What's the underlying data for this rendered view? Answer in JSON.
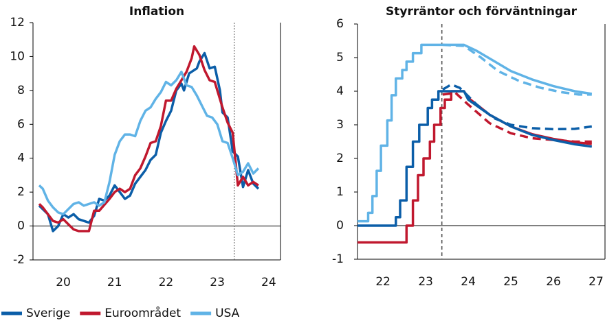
{
  "chart_data": [
    {
      "type": "line",
      "title": "Inflation",
      "xlim": [
        19.41,
        24.23
      ],
      "xticks": [
        20,
        21,
        22,
        23,
        24
      ],
      "ylim": [
        -2,
        12
      ],
      "yticks": [
        -2,
        0,
        2,
        4,
        6,
        8,
        10,
        12
      ],
      "vline": 23.33,
      "grid": false,
      "series": [
        {
          "name": "Sverige",
          "color": "#0b5ea8",
          "x": [
            19.53,
            19.7,
            19.8,
            19.9,
            20.0,
            20.1,
            20.2,
            20.3,
            20.5,
            20.6,
            20.7,
            20.8,
            20.9,
            21.0,
            21.1,
            21.2,
            21.3,
            21.4,
            21.5,
            21.6,
            21.7,
            21.8,
            21.9,
            22.0,
            22.1,
            22.2,
            22.3,
            22.35,
            22.45,
            22.6,
            22.65,
            22.75,
            22.85,
            22.95,
            23.05,
            23.1,
            23.2,
            23.3,
            23.4,
            23.5,
            23.6,
            23.7,
            23.8
          ],
          "values": [
            1.2,
            0.7,
            -0.3,
            0.0,
            0.7,
            0.5,
            0.7,
            0.4,
            0.2,
            0.6,
            1.6,
            1.5,
            1.8,
            2.4,
            2.0,
            1.6,
            1.8,
            2.5,
            2.9,
            3.3,
            3.9,
            4.2,
            5.5,
            6.2,
            6.8,
            8.0,
            8.4,
            8.0,
            9.0,
            9.3,
            9.7,
            10.2,
            9.3,
            9.4,
            8.0,
            6.7,
            6.4,
            4.4,
            4.1,
            2.3,
            3.3,
            2.5,
            2.2
          ]
        },
        {
          "name": "Euroområdet",
          "color": "#c0182e",
          "x": [
            19.53,
            19.6,
            19.8,
            19.9,
            20.0,
            20.1,
            20.2,
            20.3,
            20.5,
            20.6,
            20.7,
            20.9,
            21.0,
            21.1,
            21.2,
            21.3,
            21.4,
            21.5,
            21.6,
            21.7,
            21.8,
            21.9,
            22.0,
            22.1,
            22.2,
            22.3,
            22.4,
            22.5,
            22.55,
            22.65,
            22.75,
            22.85,
            22.95,
            23.0,
            23.1,
            23.2,
            23.3,
            23.4,
            23.5,
            23.6,
            23.7,
            23.8
          ],
          "values": [
            1.3,
            1.1,
            0.3,
            0.2,
            0.4,
            0.1,
            -0.2,
            -0.3,
            -0.3,
            0.9,
            0.9,
            1.6,
            2.0,
            2.2,
            2.0,
            2.2,
            3.0,
            3.4,
            4.1,
            4.9,
            5.0,
            5.9,
            7.4,
            7.4,
            8.1,
            8.6,
            9.1,
            9.9,
            10.6,
            10.1,
            9.2,
            8.6,
            8.5,
            8.0,
            7.0,
            6.1,
            5.5,
            2.4,
            2.9,
            2.4,
            2.6,
            2.4
          ]
        },
        {
          "name": "USA",
          "color": "#60b3e6",
          "x": [
            19.53,
            19.6,
            19.7,
            19.8,
            19.9,
            20.0,
            20.1,
            20.2,
            20.3,
            20.4,
            20.5,
            20.6,
            20.7,
            20.8,
            20.9,
            21.0,
            21.1,
            21.2,
            21.3,
            21.4,
            21.5,
            21.6,
            21.7,
            21.8,
            21.9,
            22.0,
            22.1,
            22.2,
            22.3,
            22.4,
            22.5,
            22.6,
            22.7,
            22.8,
            22.9,
            23.0,
            23.1,
            23.2,
            23.3,
            23.4,
            23.5,
            23.6,
            23.7,
            23.8
          ],
          "values": [
            2.4,
            2.2,
            1.5,
            1.1,
            0.8,
            0.7,
            1.0,
            1.3,
            1.4,
            1.2,
            1.3,
            1.4,
            1.2,
            1.4,
            2.6,
            4.2,
            5.0,
            5.4,
            5.4,
            5.3,
            6.2,
            6.8,
            7.0,
            7.5,
            7.9,
            8.5,
            8.3,
            8.6,
            9.1,
            8.3,
            8.2,
            7.7,
            7.1,
            6.5,
            6.4,
            6.0,
            5.0,
            4.9,
            4.0,
            3.0,
            3.2,
            3.7,
            3.1,
            3.4
          ]
        }
      ]
    },
    {
      "type": "line",
      "title": "Styrräntor och förväntningar",
      "xlim": [
        21.4,
        27.21
      ],
      "xticks": [
        22,
        23,
        24,
        25,
        26,
        27
      ],
      "ylim": [
        -1,
        6
      ],
      "yticks": [
        -1,
        0,
        1,
        2,
        3,
        4,
        5,
        6
      ],
      "vline": 23.38,
      "grid": false,
      "series": [
        {
          "color": "#60b3e6",
          "dashed": false,
          "x": [
            21.4,
            21.65,
            21.65,
            21.75,
            21.75,
            21.85,
            21.85,
            21.95,
            21.95,
            22.1,
            22.1,
            22.2,
            22.2,
            22.3,
            22.3,
            22.45,
            22.45,
            22.55,
            22.55,
            22.7,
            22.7,
            22.9,
            22.9,
            23.9,
            24.2,
            24.6,
            25.0,
            25.5,
            26.0,
            26.5,
            26.9
          ],
          "values": [
            0.13,
            0.13,
            0.38,
            0.38,
            0.88,
            0.88,
            1.63,
            1.63,
            2.38,
            2.38,
            3.13,
            3.13,
            3.88,
            3.88,
            4.38,
            4.38,
            4.63,
            4.63,
            4.88,
            4.88,
            5.13,
            5.13,
            5.38,
            5.38,
            5.2,
            4.9,
            4.6,
            4.35,
            4.15,
            4.0,
            3.92
          ]
        },
        {
          "color": "#60b3e6",
          "dashed": true,
          "x": [
            23.4,
            23.9,
            24.3,
            24.7,
            25.2,
            25.7,
            26.2,
            26.6,
            26.9
          ],
          "values": [
            5.38,
            5.35,
            5.0,
            4.6,
            4.3,
            4.1,
            3.97,
            3.9,
            3.9
          ]
        },
        {
          "color": "#c0182e",
          "dashed": false,
          "x": [
            21.4,
            22.55,
            22.55,
            22.7,
            22.7,
            22.82,
            22.82,
            22.95,
            22.95,
            23.1,
            23.1,
            23.2,
            23.2,
            23.35,
            23.35,
            23.45,
            23.45,
            23.6,
            23.6,
            23.9,
            24.0,
            24.5,
            25.0,
            25.5,
            26.0,
            26.5,
            26.9
          ],
          "values": [
            -0.5,
            -0.5,
            0,
            0,
            0.75,
            0.75,
            1.5,
            1.5,
            2,
            2,
            2.5,
            2.5,
            3,
            3,
            3.5,
            3.5,
            3.75,
            3.75,
            4,
            4,
            3.8,
            3.3,
            2.95,
            2.72,
            2.58,
            2.48,
            2.43
          ]
        },
        {
          "color": "#c0182e",
          "dashed": true,
          "x": [
            23.4,
            23.7,
            24.0,
            24.5,
            25.0,
            25.5,
            26.0,
            26.5,
            26.9
          ],
          "values": [
            3.9,
            3.95,
            3.6,
            3.05,
            2.75,
            2.6,
            2.55,
            2.5,
            2.5
          ]
        },
        {
          "color": "#0b5ea8",
          "dashed": false,
          "x": [
            21.4,
            22.3,
            22.3,
            22.4,
            22.4,
            22.55,
            22.55,
            22.7,
            22.7,
            22.85,
            22.85,
            23.05,
            23.05,
            23.15,
            23.15,
            23.3,
            23.3,
            23.9,
            24.0,
            24.5,
            25.0,
            25.5,
            26.0,
            26.5,
            26.9
          ],
          "values": [
            0,
            0,
            0.25,
            0.25,
            0.75,
            0.75,
            1.75,
            1.75,
            2.5,
            2.5,
            3,
            3,
            3.5,
            3.5,
            3.75,
            3.75,
            4,
            4,
            3.75,
            3.3,
            2.95,
            2.7,
            2.55,
            2.42,
            2.35
          ]
        },
        {
          "color": "#0b5ea8",
          "dashed": true,
          "x": [
            23.4,
            23.6,
            23.8,
            24.2,
            24.6,
            25.0,
            25.5,
            26.0,
            26.5,
            26.9
          ],
          "values": [
            4.05,
            4.2,
            4.1,
            3.6,
            3.2,
            3.0,
            2.9,
            2.87,
            2.88,
            2.95
          ]
        }
      ]
    }
  ]
}
